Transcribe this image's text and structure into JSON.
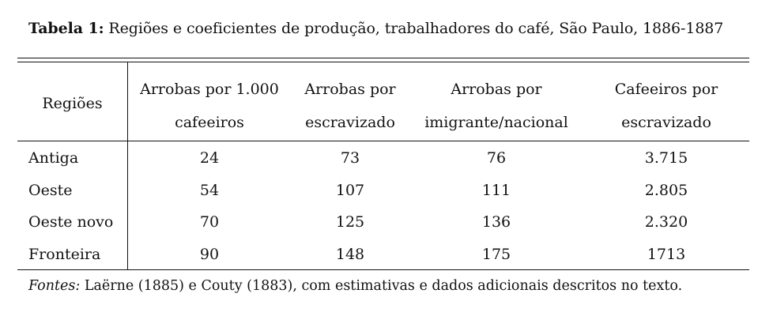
{
  "caption": {
    "label": "Tabela 1:",
    "text": " Regiões e coeficientes de produção, trabalhadores do café, São Paulo, 1886-1887"
  },
  "table": {
    "headers": [
      [
        "Regiões"
      ],
      [
        "Arrobas por 1.000",
        "cafeeiros"
      ],
      [
        "Arrobas por",
        "escravizado"
      ],
      [
        "Arrobas por",
        "imigrante/nacional"
      ],
      [
        "Cafeeiros por",
        "escravizado"
      ]
    ],
    "rows": [
      [
        "Antiga",
        "24",
        "73",
        "76",
        "3.715"
      ],
      [
        "Oeste",
        "54",
        "107",
        "111",
        "2.805"
      ],
      [
        "Oeste novo",
        "70",
        "125",
        "136",
        "2.320"
      ],
      [
        "Fronteira",
        "90",
        "148",
        "175",
        "1713"
      ]
    ]
  },
  "sources": {
    "label": "Fontes:",
    "text": " Laërne (1885) e Couty (1883), com estimativas e dados adicionais descritos no texto."
  }
}
